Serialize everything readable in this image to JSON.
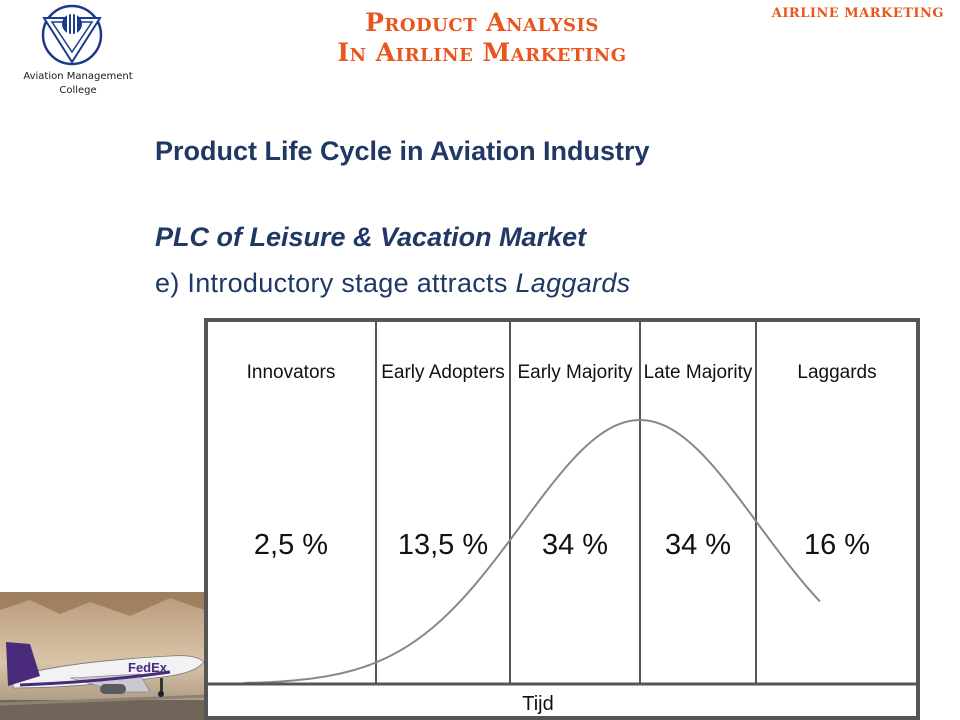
{
  "header": {
    "logo_text": "Aviation Management",
    "logo_text2": "College",
    "title_line1": "Product Analysis",
    "title_line2": "In Airline Marketing",
    "corner_label": "AIRLINE MARKETING"
  },
  "slide": {
    "heading": "Product Life Cycle in Aviation Industry",
    "subheading": "PLC of Leisure & Vacation Market",
    "point_prefix": "e) Introductory stage attracts ",
    "point_emphasis": "Laggards"
  },
  "photo": {
    "livery_text": "FedEx"
  },
  "chart_data": {
    "type": "area",
    "xlabel": "Tijd",
    "categories": [
      "Innovators",
      "Early Adopters",
      "Early Majority",
      "Late Majority",
      "Laggards"
    ],
    "values": [
      2.5,
      13.5,
      34,
      34,
      16
    ],
    "value_labels": [
      "2,5 %",
      "13,5 %",
      "34 %",
      "34 %",
      "16 %"
    ]
  },
  "colors": {
    "title": "#e8551d",
    "heading": "#1f3864",
    "logo_blue": "#1c3a8c"
  }
}
